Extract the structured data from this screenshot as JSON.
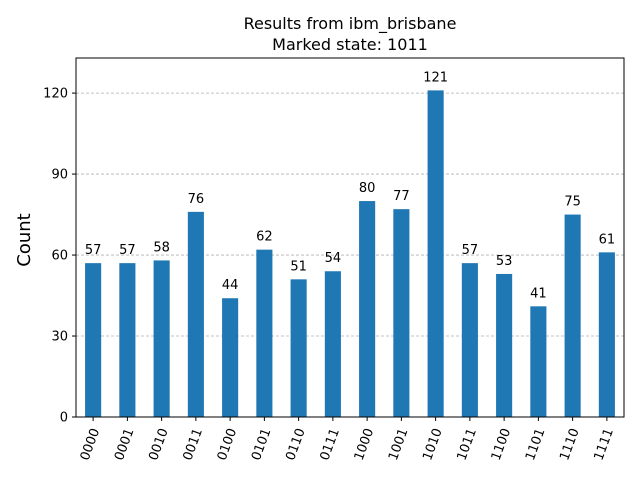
{
  "chart_data": {
    "type": "bar",
    "title": "Results from ibm_brisbane",
    "subtitle": "Marked state: 1011",
    "xlabel": "",
    "ylabel": "Count",
    "categories": [
      "0000",
      "0001",
      "0010",
      "0011",
      "0100",
      "0101",
      "0110",
      "0111",
      "1000",
      "1001",
      "1010",
      "1011",
      "1100",
      "1101",
      "1110",
      "1111"
    ],
    "values": [
      57,
      57,
      58,
      76,
      44,
      62,
      51,
      54,
      80,
      77,
      121,
      57,
      53,
      41,
      75,
      61
    ],
    "ylim": [
      0,
      133
    ],
    "yticks": [
      0,
      30,
      60,
      90,
      120
    ],
    "grid": "y-dashed",
    "bar_color": "#1f77b4",
    "grid_color": "#b0b0b0",
    "x_tick_rotation": 70
  }
}
